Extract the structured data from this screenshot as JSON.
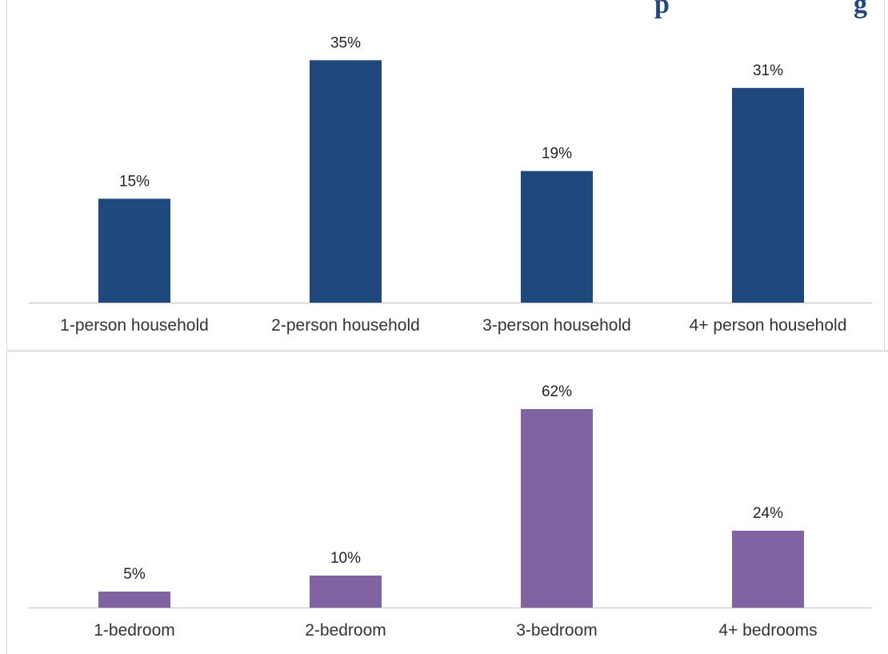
{
  "title_fragment": "p … g",
  "colors": {
    "title": "#1F497D",
    "border": "#D9D9D9",
    "axis": "#BFBFBF",
    "text": "#333333"
  },
  "chart_data": [
    {
      "type": "bar",
      "categories": [
        "1-person household",
        "2-person household",
        "3-person household",
        "4+ person household"
      ],
      "values": [
        15,
        35,
        19,
        31
      ],
      "value_labels": [
        "15%",
        "35%",
        "19%",
        "31%"
      ],
      "unit": "%",
      "color": "#1F497D",
      "grid": false,
      "legend": "none"
    },
    {
      "type": "bar",
      "categories": [
        "1-bedroom",
        "2-bedroom",
        "3-bedroom",
        "4+ bedrooms"
      ],
      "values": [
        5,
        10,
        62,
        24
      ],
      "value_labels": [
        "5%",
        "10%",
        "62%",
        "24%"
      ],
      "unit": "%",
      "color": "#8064A2",
      "grid": false,
      "legend": "none"
    }
  ]
}
